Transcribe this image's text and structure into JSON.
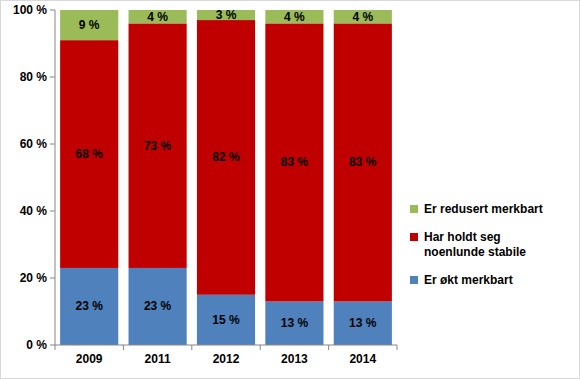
{
  "chart_data": {
    "type": "bar",
    "stacked": true,
    "data_labels": true,
    "grid": false,
    "legend": "right",
    "categories": [
      "2009",
      "2011",
      "2012",
      "2013",
      "2014"
    ],
    "series": [
      {
        "name": "Er økt merkbart",
        "color": "#4f81bd",
        "values": [
          23,
          23,
          15,
          13,
          13
        ],
        "value_labels": [
          "23 %",
          "23 %",
          "15 %",
          "13 %",
          "13 %"
        ]
      },
      {
        "name": "Har holdt seg noenlunde stabile",
        "color": "#c00000",
        "values": [
          68,
          73,
          82,
          83,
          83
        ],
        "value_labels": [
          "68 %",
          "73 %",
          "82 %",
          "83 %",
          "83 %"
        ]
      },
      {
        "name": "Er redusert merkbart",
        "color": "#9bbb59",
        "values": [
          9,
          4,
          3,
          4,
          4
        ],
        "value_labels": [
          "9 %",
          "4 %",
          "3 %",
          "4 %",
          "4 %"
        ]
      }
    ],
    "ylim": [
      0,
      100
    ],
    "yticks": [
      {
        "value": 0,
        "label": "0 %"
      },
      {
        "value": 20,
        "label": "20 %"
      },
      {
        "value": 40,
        "label": "40 %"
      },
      {
        "value": 60,
        "label": "60 %"
      },
      {
        "value": 80,
        "label": "80 %"
      },
      {
        "value": 100,
        "label": "100 %"
      }
    ]
  }
}
